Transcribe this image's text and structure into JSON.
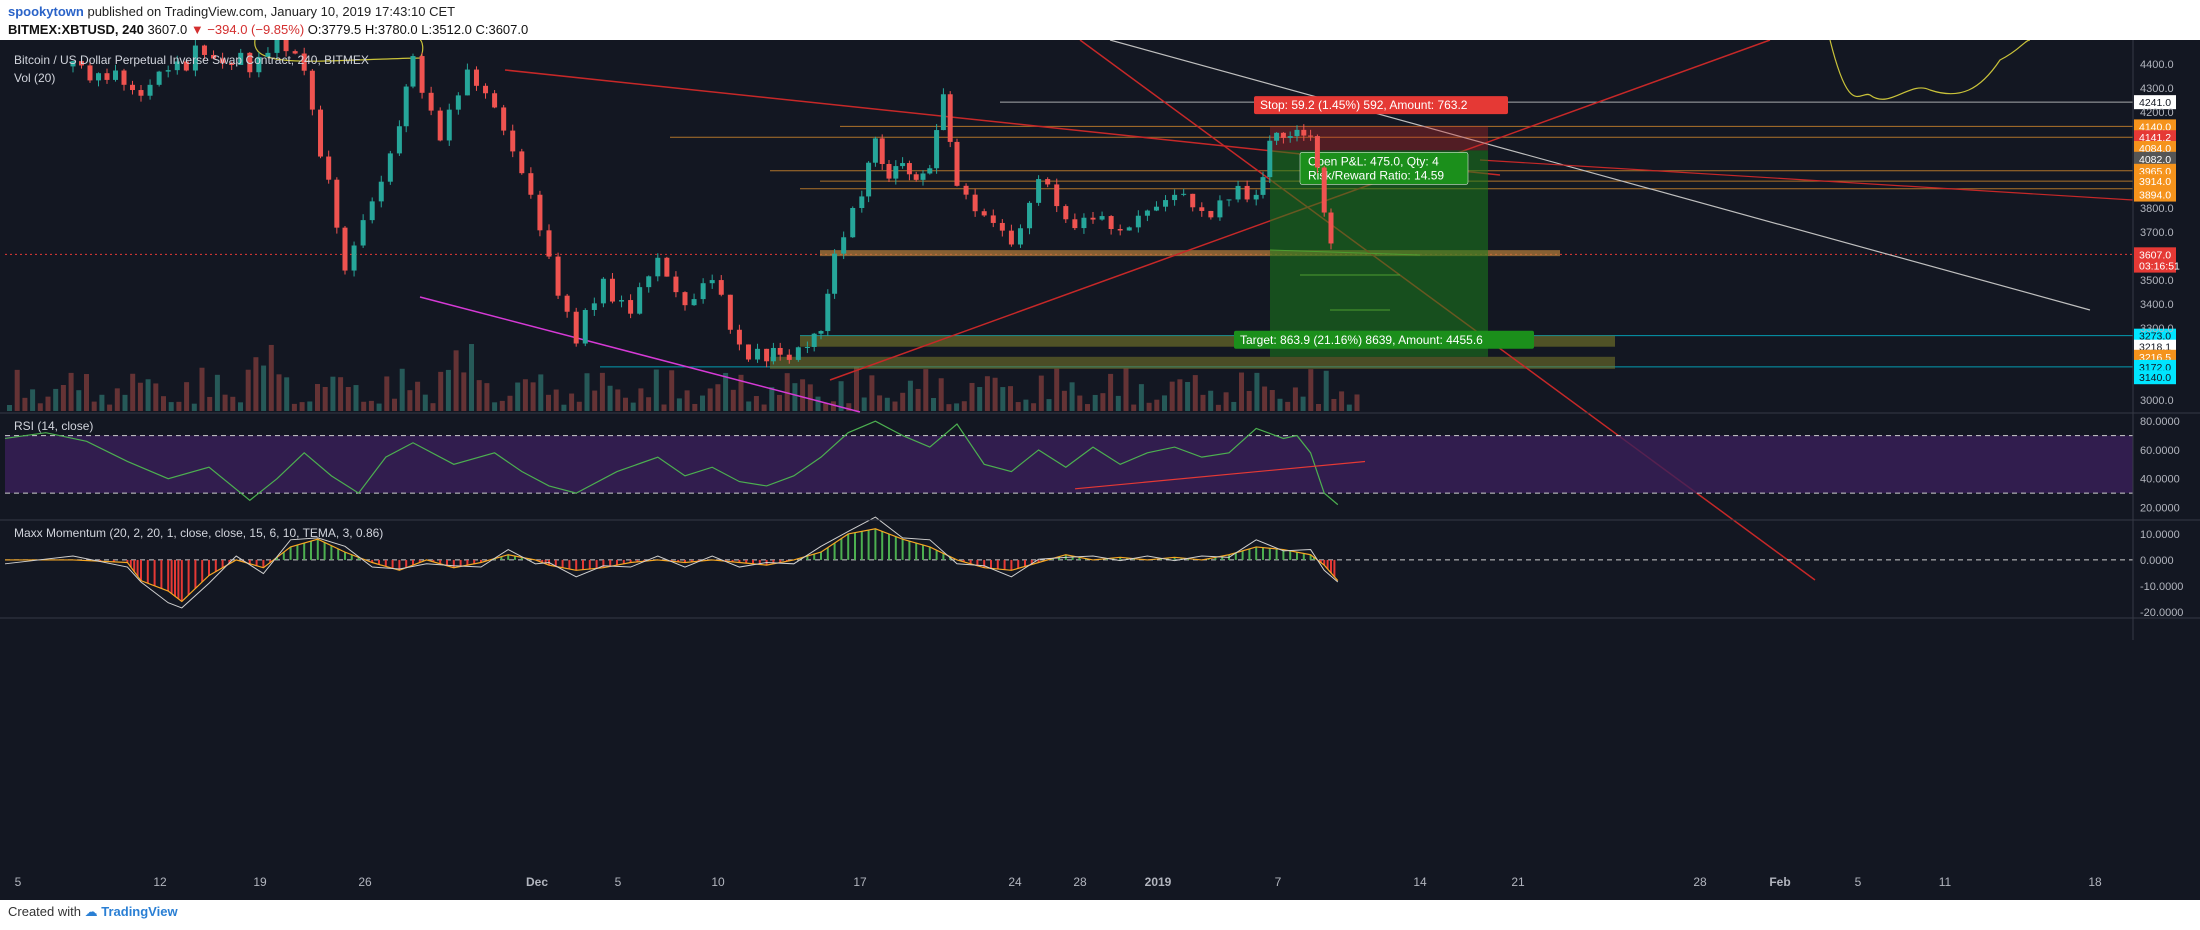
{
  "header": {
    "user": "spookytown",
    "published": "published on TradingView.com, January 10, 2019 17:43:10 CET",
    "symbol": "BITMEX:XBTUSD, 240",
    "last": "3607.0",
    "change": "▼ −394.0 (−9.85%)",
    "ohlc": "O:3779.5 H:3780.0 L:3512.0 C:3607.0"
  },
  "footer": {
    "created_with": "Created with",
    "brand": "TradingView"
  },
  "chart_data": {
    "type": "line",
    "title": "Bitcoin / US Dollar Perpetual Inverse Swap Contract, 240, BITMEX",
    "volume_label": "Vol (20)",
    "ylim": [
      2950,
      4500
    ],
    "price_ticks": [
      "4400.0",
      "4300.0",
      "4200.0",
      "3800.0",
      "3700.0",
      "3500.0",
      "3400.0",
      "3300.0",
      "3000.0"
    ],
    "x_ticks": [
      "5",
      "12",
      "19",
      "26",
      "Dec",
      "5",
      "10",
      "17",
      "24",
      "28",
      "2019",
      "7",
      "14",
      "21",
      "28",
      "Feb",
      "5",
      "11",
      "18"
    ],
    "price_series": [
      [
        5,
        4390
      ],
      [
        10,
        4300
      ],
      [
        14,
        4440
      ],
      [
        18,
        4400
      ],
      [
        20,
        4490
      ],
      [
        22,
        4380
      ],
      [
        25,
        3550
      ],
      [
        27,
        3800
      ],
      [
        29,
        4180
      ],
      [
        30,
        4390
      ],
      [
        32,
        4120
      ],
      [
        34,
        4350
      ],
      [
        36,
        4230
      ],
      [
        38,
        3950
      ],
      [
        40,
        3580
      ],
      [
        42,
        3260
      ],
      [
        44,
        3480
      ],
      [
        46,
        3380
      ],
      [
        48,
        3580
      ],
      [
        50,
        3400
      ],
      [
        52,
        3500
      ],
      [
        54,
        3230
      ],
      [
        56,
        3160
      ],
      [
        57,
        3195
      ],
      [
        59,
        3210
      ],
      [
        60,
        3300
      ],
      [
        61,
        3600
      ],
      [
        63,
        3850
      ],
      [
        64,
        4100
      ],
      [
        65,
        3900
      ],
      [
        66,
        4020
      ],
      [
        67,
        3880
      ],
      [
        68,
        4000
      ],
      [
        69,
        4250
      ],
      [
        70,
        3900
      ],
      [
        72,
        3780
      ],
      [
        74,
        3620
      ],
      [
        76,
        3960
      ],
      [
        78,
        3710
      ],
      [
        80,
        3790
      ],
      [
        82,
        3680
      ],
      [
        84,
        3800
      ],
      [
        86,
        3860
      ],
      [
        88,
        3770
      ],
      [
        90,
        3860
      ],
      [
        92,
        3830
      ],
      [
        93,
        4100
      ],
      [
        94,
        4080
      ],
      [
        95,
        4130
      ],
      [
        96,
        4100
      ],
      [
        97,
        3780
      ],
      [
        98,
        3600
      ]
    ],
    "price_levels": [
      {
        "label": "4241.0",
        "value": 4241,
        "color": "#ffffff"
      },
      {
        "label": "4140.0",
        "value": 4140,
        "color": "#f5931c"
      },
      {
        "label": "4141.2",
        "value": 4095,
        "color": "#e53935"
      },
      {
        "label": "4084.0",
        "value": 4050,
        "color": "#f5931c"
      },
      {
        "label": "4082.0",
        "value": 4005,
        "color": "#555555"
      },
      {
        "label": "3965.0",
        "value": 3955,
        "color": "#f5931c"
      },
      {
        "label": "3914.0",
        "value": 3912,
        "color": "#f5931c"
      },
      {
        "label": "3894.0",
        "value": 3856,
        "color": "#f5931c"
      },
      {
        "label": "3607.0",
        "value": 3607,
        "color": "#e53935"
      },
      {
        "label": "03:16:51",
        "value": 3560,
        "color": "#e53935"
      },
      {
        "label": "3273.0",
        "value": 3268,
        "color": "#00e5ff"
      },
      {
        "label": "3218.1",
        "value": 3222,
        "color": "#ffffff"
      },
      {
        "label": "3216.5",
        "value": 3180,
        "color": "#f5931c"
      },
      {
        "label": "3172.0",
        "value": 3138,
        "color": "#00e5ff"
      },
      {
        "label": "3140.0",
        "value": 3095,
        "color": "#00e5ff"
      }
    ],
    "position": {
      "stop_label": "Stop: 59.2 (1.45%) 592, Amount: 763.2",
      "pnl_line1": "Open P&L: 475.0, Qty: 4",
      "pnl_line2": "Risk/Reward Ratio: 14.59",
      "target_label": "Target: 863.9 (21.16%) 8639, Amount: 4455.6"
    },
    "rsi": {
      "label": "RSI (14, close)",
      "ticks": [
        "80.0000",
        "60.0000",
        "40.0000",
        "20.0000"
      ],
      "series": [
        [
          0,
          68
        ],
        [
          3,
          72
        ],
        [
          6,
          66
        ],
        [
          9,
          52
        ],
        [
          12,
          40
        ],
        [
          15,
          48
        ],
        [
          18,
          25
        ],
        [
          20,
          40
        ],
        [
          22,
          58
        ],
        [
          24,
          42
        ],
        [
          26,
          30
        ],
        [
          28,
          55
        ],
        [
          30,
          65
        ],
        [
          33,
          50
        ],
        [
          36,
          58
        ],
        [
          38,
          45
        ],
        [
          40,
          35
        ],
        [
          42,
          30
        ],
        [
          45,
          45
        ],
        [
          48,
          55
        ],
        [
          50,
          42
        ],
        [
          52,
          48
        ],
        [
          54,
          38
        ],
        [
          56,
          35
        ],
        [
          58,
          42
        ],
        [
          60,
          55
        ],
        [
          62,
          72
        ],
        [
          64,
          80
        ],
        [
          66,
          70
        ],
        [
          68,
          62
        ],
        [
          70,
          78
        ],
        [
          72,
          50
        ],
        [
          74,
          45
        ],
        [
          76,
          60
        ],
        [
          78,
          48
        ],
        [
          80,
          62
        ],
        [
          82,
          50
        ],
        [
          84,
          58
        ],
        [
          86,
          62
        ],
        [
          88,
          55
        ],
        [
          90,
          58
        ],
        [
          92,
          75
        ],
        [
          94,
          68
        ],
        [
          95,
          70
        ],
        [
          96,
          58
        ],
        [
          97,
          30
        ],
        [
          98,
          22
        ]
      ]
    },
    "momentum": {
      "label": "Maxx Momentum (20, 2, 20, 1, close, close, 15, 6, 10, TEMA, 3, 0.86)",
      "ticks": [
        "10.0000",
        "0.0000",
        "-10.0000",
        "-20.0000"
      ],
      "series": [
        [
          0,
          0
        ],
        [
          5,
          0
        ],
        [
          9,
          -1
        ],
        [
          10,
          -8
        ],
        [
          12,
          -12
        ],
        [
          13,
          -16
        ],
        [
          15,
          -6
        ],
        [
          17,
          0
        ],
        [
          19,
          -3
        ],
        [
          21,
          5
        ],
        [
          23,
          8
        ],
        [
          25,
          3
        ],
        [
          27,
          -1
        ],
        [
          29,
          -4
        ],
        [
          31,
          0
        ],
        [
          33,
          -3
        ],
        [
          35,
          -1
        ],
        [
          37,
          2
        ],
        [
          39,
          0
        ],
        [
          40,
          -2
        ],
        [
          42,
          -4
        ],
        [
          44,
          -3
        ],
        [
          46,
          -1
        ],
        [
          48,
          0
        ],
        [
          50,
          -1
        ],
        [
          52,
          0
        ],
        [
          54,
          -1
        ],
        [
          56,
          -2
        ],
        [
          58,
          0
        ],
        [
          60,
          3
        ],
        [
          62,
          10
        ],
        [
          64,
          12
        ],
        [
          66,
          8
        ],
        [
          68,
          5
        ],
        [
          70,
          0
        ],
        [
          72,
          -3
        ],
        [
          74,
          -4
        ],
        [
          76,
          -1
        ],
        [
          78,
          2
        ],
        [
          80,
          0
        ],
        [
          82,
          1
        ],
        [
          84,
          0
        ],
        [
          86,
          1
        ],
        [
          88,
          0
        ],
        [
          90,
          2
        ],
        [
          92,
          5
        ],
        [
          94,
          4
        ],
        [
          96,
          2
        ],
        [
          97,
          -2
        ],
        [
          98,
          -8
        ]
      ]
    }
  }
}
